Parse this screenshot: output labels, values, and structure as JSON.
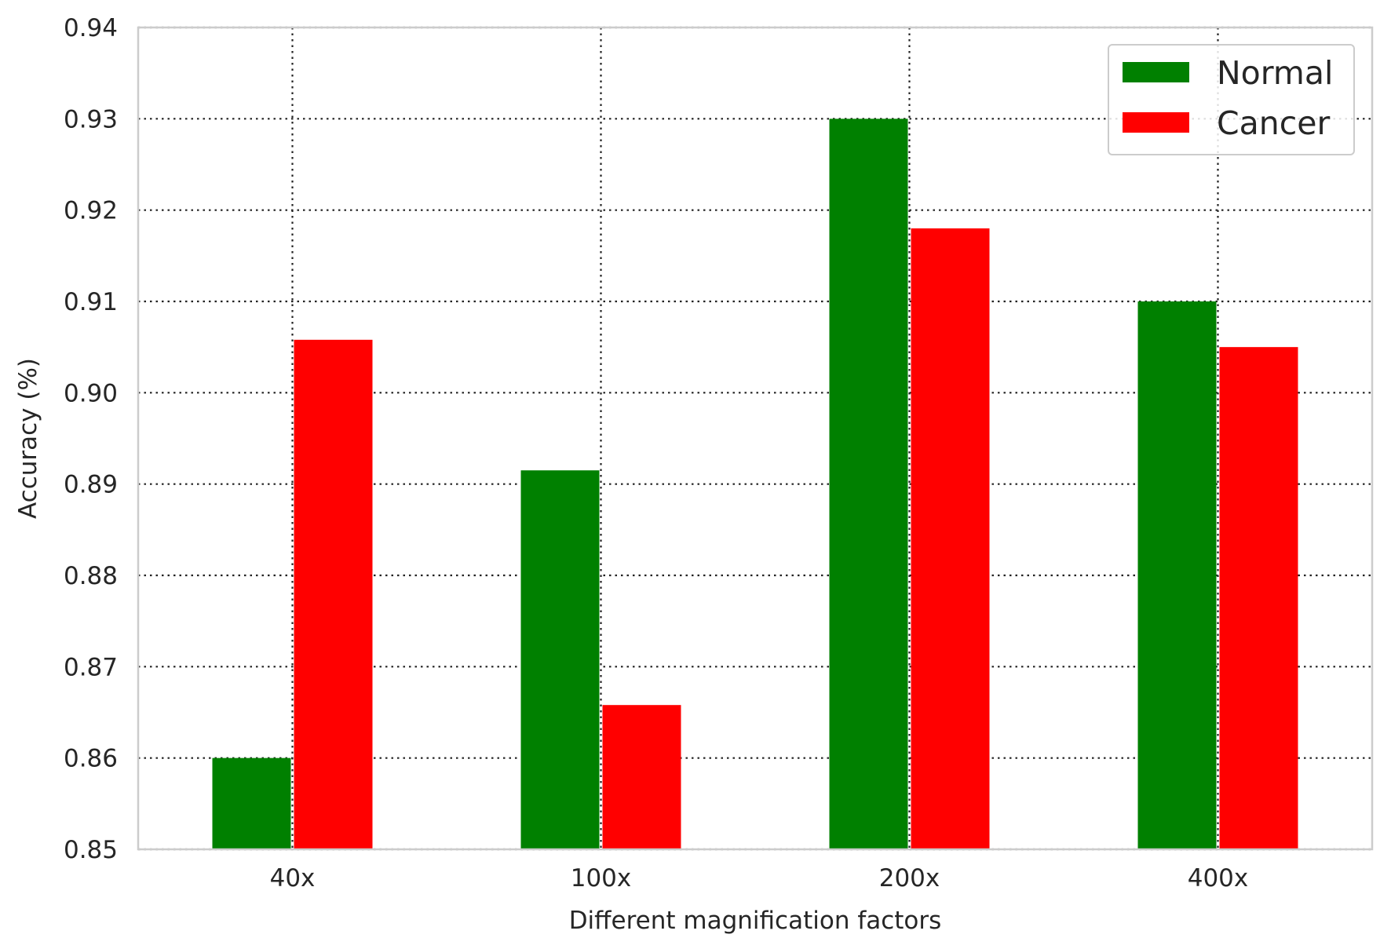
{
  "chart_data": {
    "type": "bar",
    "title": "",
    "xlabel": "Different magnification factors",
    "ylabel": "Accuracy (%)",
    "categories": [
      "40x",
      "100x",
      "200x",
      "400x"
    ],
    "series": [
      {
        "name": "Normal",
        "color": "#008000",
        "values": [
          0.86,
          0.8915,
          0.93,
          0.91
        ]
      },
      {
        "name": "Cancer",
        "color": "#ff0000",
        "values": [
          0.9058,
          0.8658,
          0.918,
          0.905
        ]
      }
    ],
    "ylim": [
      0.85,
      0.94
    ],
    "yticks": [
      0.85,
      0.86,
      0.87,
      0.88,
      0.89,
      0.9,
      0.91,
      0.92,
      0.93,
      0.94
    ],
    "ytick_labels": [
      "0.85",
      "0.86",
      "0.87",
      "0.88",
      "0.89",
      "0.90",
      "0.91",
      "0.92",
      "0.93",
      "0.94"
    ],
    "grid": true,
    "grid_style": "dotted",
    "legend_position": "top-right"
  }
}
